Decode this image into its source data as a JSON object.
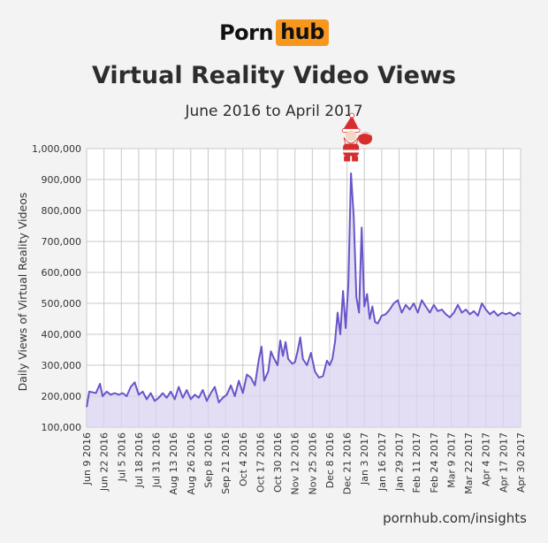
{
  "brand": {
    "left": "Porn",
    "right": "hub",
    "accent_color": "#f7971d"
  },
  "footer_text": "pornhub.com/insights",
  "chart_data": {
    "type": "area",
    "title": "Virtual Reality Video Views",
    "subtitle": "June 2016 to April 2017",
    "ylabel": "Daily Views of Virtual Reality Videos",
    "xlabel": "",
    "ylim": [
      100000,
      1000000
    ],
    "yticks": [
      {
        "value": 100000,
        "label": "100,000"
      },
      {
        "value": 200000,
        "label": "200,000"
      },
      {
        "value": 300000,
        "label": "300,000"
      },
      {
        "value": 400000,
        "label": "400,000"
      },
      {
        "value": 500000,
        "label": "500,000"
      },
      {
        "value": 600000,
        "label": "600,000"
      },
      {
        "value": 700000,
        "label": "700,000"
      },
      {
        "value": 800000,
        "label": "800,000"
      },
      {
        "value": 900000,
        "label": "900,000"
      },
      {
        "value": 1000000,
        "label": "1,000,000"
      }
    ],
    "xticks": [
      {
        "x": "2016-06-09",
        "label": "Jun 9 2016"
      },
      {
        "x": "2016-06-22",
        "label": "Jun 22 2016"
      },
      {
        "x": "2016-07-05",
        "label": "Jul 5 2016"
      },
      {
        "x": "2016-07-18",
        "label": "Jul 18 2016"
      },
      {
        "x": "2016-07-31",
        "label": "Jul 31 2016"
      },
      {
        "x": "2016-08-13",
        "label": "Aug 13 2016"
      },
      {
        "x": "2016-08-26",
        "label": "Aug 26 2016"
      },
      {
        "x": "2016-09-08",
        "label": "Sep 8 2016"
      },
      {
        "x": "2016-09-21",
        "label": "Sep 21 2016"
      },
      {
        "x": "2016-10-04",
        "label": "Oct 4 2016"
      },
      {
        "x": "2016-10-17",
        "label": "Oct 17 2016"
      },
      {
        "x": "2016-10-30",
        "label": "Oct 30 2016"
      },
      {
        "x": "2016-11-12",
        "label": "Nov 12 2016"
      },
      {
        "x": "2016-11-25",
        "label": "Nov 25 2016"
      },
      {
        "x": "2016-12-08",
        "label": "Dec 8 2016"
      },
      {
        "x": "2016-12-21",
        "label": "Dec 21 2016"
      },
      {
        "x": "2017-01-03",
        "label": "Jan 3 2017"
      },
      {
        "x": "2017-01-16",
        "label": "Jan 16 2017"
      },
      {
        "x": "2017-01-29",
        "label": "Jan 29 2017"
      },
      {
        "x": "2017-02-11",
        "label": "Feb 11 2017"
      },
      {
        "x": "2017-02-24",
        "label": "Feb 24 2017"
      },
      {
        "x": "2017-03-09",
        "label": "Mar 9 2017"
      },
      {
        "x": "2017-03-22",
        "label": "Mar 22 2017"
      },
      {
        "x": "2017-04-04",
        "label": "Apr 4 2017"
      },
      {
        "x": "2017-04-17",
        "label": "Apr 17 2017"
      },
      {
        "x": "2017-04-30",
        "label": "Apr 30 2017"
      }
    ],
    "grid": true,
    "legend": "none",
    "colors": {
      "line": "#6a54c9",
      "fill": "#d9d3f0",
      "annotation": "#d62d2d"
    },
    "annotation": {
      "icon": "santa-icon",
      "x": "2016-12-24",
      "value": 930000
    },
    "series": [
      {
        "points": [
          [
            "2016-06-09",
            165000
          ],
          [
            "2016-06-11",
            215000
          ],
          [
            "2016-06-14",
            212000
          ],
          [
            "2016-06-16",
            210000
          ],
          [
            "2016-06-19",
            240000
          ],
          [
            "2016-06-21",
            200000
          ],
          [
            "2016-06-24",
            215000
          ],
          [
            "2016-06-27",
            205000
          ],
          [
            "2016-06-30",
            210000
          ],
          [
            "2016-07-03",
            205000
          ],
          [
            "2016-07-06",
            210000
          ],
          [
            "2016-07-09",
            200000
          ],
          [
            "2016-07-12",
            230000
          ],
          [
            "2016-07-15",
            245000
          ],
          [
            "2016-07-18",
            205000
          ],
          [
            "2016-07-21",
            215000
          ],
          [
            "2016-07-24",
            190000
          ],
          [
            "2016-07-27",
            210000
          ],
          [
            "2016-07-30",
            185000
          ],
          [
            "2016-08-02",
            195000
          ],
          [
            "2016-08-05",
            210000
          ],
          [
            "2016-08-08",
            195000
          ],
          [
            "2016-08-11",
            215000
          ],
          [
            "2016-08-14",
            190000
          ],
          [
            "2016-08-17",
            230000
          ],
          [
            "2016-08-20",
            195000
          ],
          [
            "2016-08-23",
            220000
          ],
          [
            "2016-08-26",
            190000
          ],
          [
            "2016-08-29",
            205000
          ],
          [
            "2016-09-01",
            195000
          ],
          [
            "2016-09-04",
            220000
          ],
          [
            "2016-09-07",
            185000
          ],
          [
            "2016-09-10",
            210000
          ],
          [
            "2016-09-13",
            230000
          ],
          [
            "2016-09-16",
            180000
          ],
          [
            "2016-09-19",
            195000
          ],
          [
            "2016-09-22",
            205000
          ],
          [
            "2016-09-25",
            235000
          ],
          [
            "2016-09-28",
            200000
          ],
          [
            "2016-10-01",
            250000
          ],
          [
            "2016-10-04",
            210000
          ],
          [
            "2016-10-07",
            270000
          ],
          [
            "2016-10-10",
            260000
          ],
          [
            "2016-10-13",
            235000
          ],
          [
            "2016-10-16",
            320000
          ],
          [
            "2016-10-18",
            360000
          ],
          [
            "2016-10-20",
            250000
          ],
          [
            "2016-10-23",
            280000
          ],
          [
            "2016-10-25",
            345000
          ],
          [
            "2016-10-27",
            325000
          ],
          [
            "2016-10-30",
            300000
          ],
          [
            "2016-11-01",
            380000
          ],
          [
            "2016-11-03",
            330000
          ],
          [
            "2016-11-05",
            375000
          ],
          [
            "2016-11-07",
            320000
          ],
          [
            "2016-11-10",
            305000
          ],
          [
            "2016-11-12",
            310000
          ],
          [
            "2016-11-14",
            345000
          ],
          [
            "2016-11-16",
            390000
          ],
          [
            "2016-11-18",
            320000
          ],
          [
            "2016-11-21",
            300000
          ],
          [
            "2016-11-24",
            340000
          ],
          [
            "2016-11-27",
            280000
          ],
          [
            "2016-11-30",
            260000
          ],
          [
            "2016-12-03",
            265000
          ],
          [
            "2016-12-06",
            315000
          ],
          [
            "2016-12-08",
            300000
          ],
          [
            "2016-12-10",
            320000
          ],
          [
            "2016-12-12",
            375000
          ],
          [
            "2016-12-14",
            470000
          ],
          [
            "2016-12-16",
            400000
          ],
          [
            "2016-12-18",
            540000
          ],
          [
            "2016-12-20",
            420000
          ],
          [
            "2016-12-22",
            560000
          ],
          [
            "2016-12-24",
            920000
          ],
          [
            "2016-12-26",
            780000
          ],
          [
            "2016-12-28",
            520000
          ],
          [
            "2016-12-30",
            470000
          ],
          [
            "2017-01-01",
            745000
          ],
          [
            "2017-01-03",
            490000
          ],
          [
            "2017-01-05",
            530000
          ],
          [
            "2017-01-07",
            450000
          ],
          [
            "2017-01-09",
            490000
          ],
          [
            "2017-01-11",
            440000
          ],
          [
            "2017-01-13",
            435000
          ],
          [
            "2017-01-16",
            460000
          ],
          [
            "2017-01-19",
            465000
          ],
          [
            "2017-01-22",
            480000
          ],
          [
            "2017-01-25",
            500000
          ],
          [
            "2017-01-28",
            510000
          ],
          [
            "2017-01-31",
            470000
          ],
          [
            "2017-02-03",
            495000
          ],
          [
            "2017-02-06",
            480000
          ],
          [
            "2017-02-09",
            500000
          ],
          [
            "2017-02-12",
            470000
          ],
          [
            "2017-02-15",
            510000
          ],
          [
            "2017-02-18",
            490000
          ],
          [
            "2017-02-21",
            470000
          ],
          [
            "2017-02-24",
            495000
          ],
          [
            "2017-02-27",
            475000
          ],
          [
            "2017-03-02",
            480000
          ],
          [
            "2017-03-05",
            465000
          ],
          [
            "2017-03-08",
            455000
          ],
          [
            "2017-03-11",
            470000
          ],
          [
            "2017-03-14",
            495000
          ],
          [
            "2017-03-17",
            470000
          ],
          [
            "2017-03-20",
            480000
          ],
          [
            "2017-03-23",
            465000
          ],
          [
            "2017-03-26",
            475000
          ],
          [
            "2017-03-29",
            460000
          ],
          [
            "2017-04-01",
            500000
          ],
          [
            "2017-04-04",
            480000
          ],
          [
            "2017-04-07",
            465000
          ],
          [
            "2017-04-10",
            475000
          ],
          [
            "2017-04-13",
            460000
          ],
          [
            "2017-04-16",
            470000
          ],
          [
            "2017-04-19",
            465000
          ],
          [
            "2017-04-22",
            470000
          ],
          [
            "2017-04-25",
            460000
          ],
          [
            "2017-04-28",
            470000
          ],
          [
            "2017-04-30",
            465000
          ]
        ]
      }
    ]
  }
}
